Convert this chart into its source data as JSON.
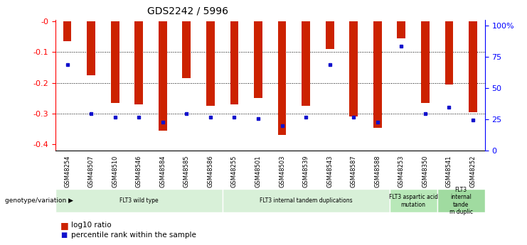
{
  "title": "GDS2242 / 5996",
  "samples": [
    "GSM48254",
    "GSM48507",
    "GSM48510",
    "GSM48546",
    "GSM48584",
    "GSM48585",
    "GSM48586",
    "GSM48255",
    "GSM48501",
    "GSM48503",
    "GSM48539",
    "GSM48543",
    "GSM48587",
    "GSM48588",
    "GSM48253",
    "GSM48350",
    "GSM48541",
    "GSM48252"
  ],
  "log10_ratio": [
    -0.065,
    -0.175,
    -0.265,
    -0.27,
    -0.355,
    -0.185,
    -0.275,
    -0.27,
    -0.25,
    -0.37,
    -0.275,
    -0.09,
    -0.31,
    -0.345,
    -0.055,
    -0.265,
    -0.205,
    -0.295
  ],
  "percentile_pct": [
    65,
    25,
    22,
    22,
    18,
    25,
    22,
    22,
    21,
    15,
    22,
    65,
    22,
    18,
    80,
    25,
    30,
    20
  ],
  "bar_color": "#cc2200",
  "dot_color": "#1111cc",
  "group_colors": [
    "#d8f0d8",
    "#d8f0d8",
    "#b8e8b8",
    "#a0dba0"
  ],
  "group_labels": [
    "FLT3 wild type",
    "FLT3 internal tandem duplications",
    "FLT3 aspartic acid\nmutation",
    "FLT3\ninternal\ntande\nm duplic"
  ],
  "group_ranges": [
    [
      0,
      7
    ],
    [
      7,
      14
    ],
    [
      14,
      16
    ],
    [
      16,
      18
    ]
  ],
  "ylim_left": [
    -0.42,
    0.005
  ],
  "left_ticks": [
    -0.4,
    -0.3,
    -0.2,
    -0.1,
    -0.0
  ],
  "left_tick_labels": [
    "-0.4",
    "-0.3",
    "-0.2",
    "-0.1",
    "-0"
  ],
  "right_ticks_pct": [
    0,
    25,
    50,
    75,
    100
  ],
  "right_tick_labels": [
    "0",
    "25",
    "50",
    "75",
    "100%"
  ],
  "legend_log10": "log10 ratio",
  "legend_pct": "percentile rank within the sample",
  "genotype_label": "genotype/variation"
}
